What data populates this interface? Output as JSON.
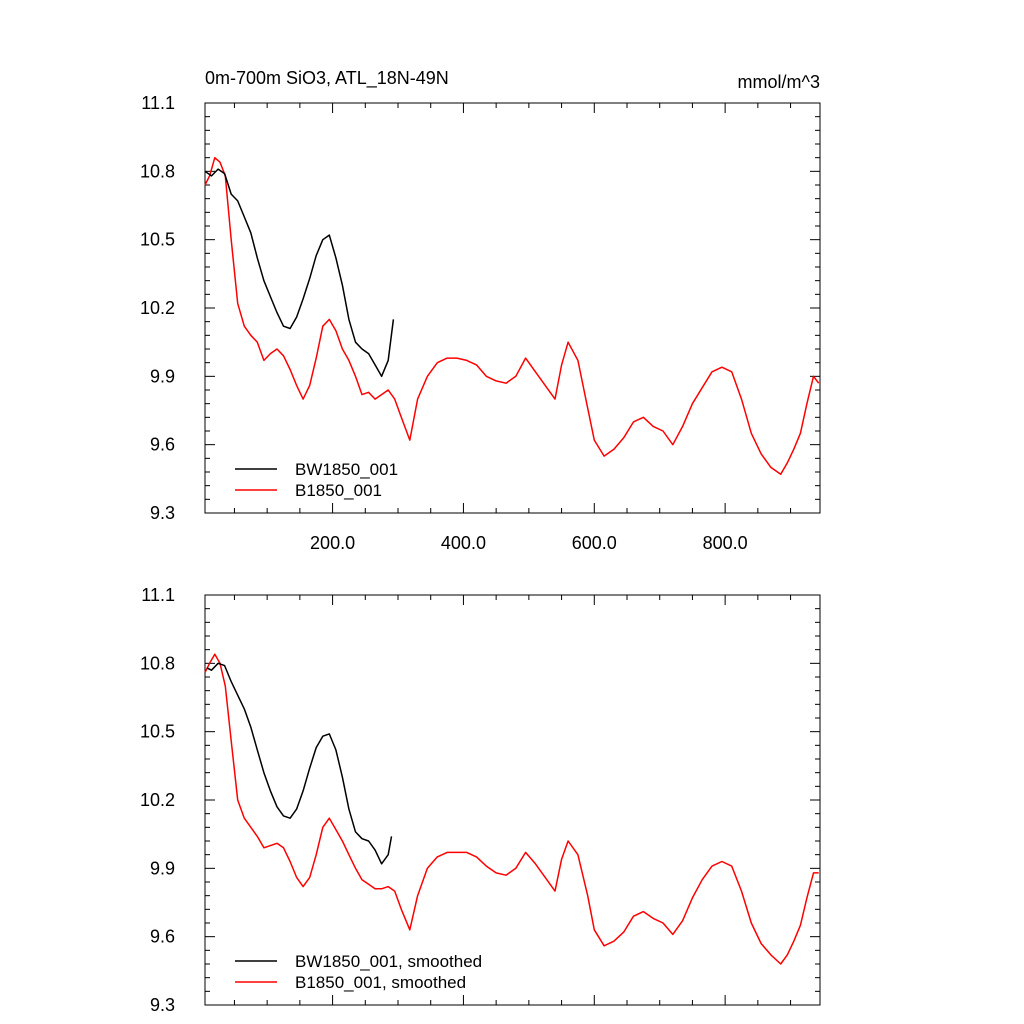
{
  "figure": {
    "title_left": "0m-700m SiO3, ATL_18N-49N",
    "title_right": "mmol/m^3"
  },
  "chart_data": [
    {
      "type": "line",
      "title": "0m-700m SiO3, ATL_18N-49N",
      "units": "mmol/m^3",
      "xlim": [
        5,
        945
      ],
      "ylim": [
        9.3,
        11.1
      ],
      "yticks": [
        "9.3",
        "9.6",
        "9.9",
        "10.2",
        "10.5",
        "10.8",
        "11.1"
      ],
      "xticks": [
        "200.0",
        "400.0",
        "600.0",
        "800.0"
      ],
      "legend_position": "bottom-left",
      "series": [
        {
          "name": "BW1850_001",
          "color": "#000000",
          "x": [
            5,
            15,
            25,
            35,
            45,
            55,
            65,
            75,
            85,
            95,
            105,
            115,
            125,
            135,
            145,
            155,
            165,
            175,
            185,
            195,
            205,
            215,
            225,
            235,
            245,
            255,
            265,
            275,
            285,
            293
          ],
          "y": [
            10.8,
            10.78,
            10.81,
            10.79,
            10.7,
            10.67,
            10.6,
            10.53,
            10.42,
            10.32,
            10.25,
            10.18,
            10.12,
            10.11,
            10.16,
            10.24,
            10.33,
            10.43,
            10.5,
            10.52,
            10.42,
            10.3,
            10.15,
            10.05,
            10.02,
            10.0,
            9.95,
            9.9,
            9.97,
            10.15
          ]
        },
        {
          "name": "B1850_001",
          "color": "#ff0000",
          "x": [
            5,
            12,
            20,
            28,
            36,
            45,
            55,
            65,
            75,
            85,
            95,
            105,
            115,
            125,
            135,
            145,
            155,
            165,
            175,
            185,
            195,
            205,
            215,
            225,
            235,
            245,
            255,
            265,
            275,
            285,
            295,
            305,
            318,
            330,
            345,
            360,
            375,
            390,
            405,
            420,
            435,
            450,
            465,
            480,
            495,
            510,
            525,
            540,
            550,
            560,
            575,
            590,
            600,
            615,
            630,
            645,
            660,
            675,
            690,
            705,
            720,
            735,
            750,
            765,
            780,
            795,
            810,
            825,
            840,
            855,
            870,
            885,
            895,
            905,
            915,
            925,
            935,
            943
          ],
          "y": [
            10.74,
            10.78,
            10.86,
            10.84,
            10.78,
            10.5,
            10.22,
            10.12,
            10.08,
            10.05,
            9.97,
            10.0,
            10.02,
            9.99,
            9.93,
            9.86,
            9.8,
            9.86,
            9.98,
            10.12,
            10.15,
            10.1,
            10.02,
            9.97,
            9.9,
            9.82,
            9.83,
            9.8,
            9.82,
            9.84,
            9.8,
            9.72,
            9.62,
            9.8,
            9.9,
            9.96,
            9.98,
            9.98,
            9.97,
            9.95,
            9.9,
            9.88,
            9.87,
            9.9,
            9.98,
            9.92,
            9.86,
            9.8,
            9.95,
            10.05,
            9.97,
            9.76,
            9.62,
            9.55,
            9.58,
            9.63,
            9.7,
            9.72,
            9.68,
            9.66,
            9.6,
            9.68,
            9.78,
            9.85,
            9.92,
            9.94,
            9.92,
            9.8,
            9.65,
            9.56,
            9.5,
            9.47,
            9.52,
            9.58,
            9.65,
            9.78,
            9.9,
            9.87
          ]
        }
      ]
    },
    {
      "type": "line",
      "xlim": [
        5,
        945
      ],
      "ylim": [
        9.3,
        11.1
      ],
      "yticks": [
        "9.3",
        "9.6",
        "9.9",
        "10.2",
        "10.5",
        "10.8",
        "11.1"
      ],
      "legend_position": "bottom-left",
      "series": [
        {
          "name": "BW1850_001, smoothed",
          "color": "#000000",
          "x": [
            8,
            15,
            25,
            35,
            45,
            55,
            65,
            75,
            85,
            95,
            105,
            115,
            125,
            135,
            145,
            155,
            165,
            175,
            185,
            195,
            205,
            215,
            225,
            235,
            245,
            255,
            265,
            275,
            285,
            290
          ],
          "y": [
            10.78,
            10.77,
            10.8,
            10.79,
            10.72,
            10.66,
            10.6,
            10.52,
            10.42,
            10.32,
            10.24,
            10.17,
            10.13,
            10.12,
            10.16,
            10.24,
            10.34,
            10.43,
            10.48,
            10.49,
            10.42,
            10.3,
            10.16,
            10.06,
            10.03,
            10.02,
            9.98,
            9.92,
            9.96,
            10.04
          ]
        },
        {
          "name": "B1850_001, smoothed",
          "color": "#ff0000",
          "x": [
            5,
            12,
            20,
            28,
            36,
            45,
            55,
            65,
            75,
            85,
            95,
            105,
            115,
            125,
            135,
            145,
            155,
            165,
            175,
            185,
            195,
            205,
            215,
            225,
            235,
            245,
            255,
            265,
            275,
            285,
            295,
            305,
            318,
            330,
            345,
            360,
            375,
            390,
            405,
            420,
            435,
            450,
            465,
            480,
            495,
            510,
            525,
            540,
            550,
            560,
            575,
            590,
            600,
            615,
            630,
            645,
            660,
            675,
            690,
            705,
            720,
            735,
            750,
            765,
            780,
            795,
            810,
            825,
            840,
            855,
            870,
            885,
            895,
            905,
            915,
            925,
            935,
            943
          ],
          "y": [
            10.76,
            10.8,
            10.84,
            10.8,
            10.7,
            10.46,
            10.2,
            10.12,
            10.08,
            10.04,
            9.99,
            10.0,
            10.01,
            9.99,
            9.93,
            9.86,
            9.82,
            9.86,
            9.96,
            10.08,
            10.12,
            10.07,
            10.02,
            9.96,
            9.9,
            9.85,
            9.83,
            9.81,
            9.81,
            9.82,
            9.8,
            9.72,
            9.63,
            9.78,
            9.9,
            9.95,
            9.97,
            9.97,
            9.97,
            9.95,
            9.91,
            9.88,
            9.87,
            9.9,
            9.97,
            9.92,
            9.86,
            9.8,
            9.94,
            10.02,
            9.96,
            9.78,
            9.63,
            9.56,
            9.58,
            9.62,
            9.69,
            9.71,
            9.68,
            9.66,
            9.61,
            9.67,
            9.77,
            9.85,
            9.91,
            9.93,
            9.91,
            9.8,
            9.66,
            9.57,
            9.52,
            9.48,
            9.52,
            9.58,
            9.65,
            9.77,
            9.88,
            9.88
          ]
        }
      ]
    }
  ]
}
